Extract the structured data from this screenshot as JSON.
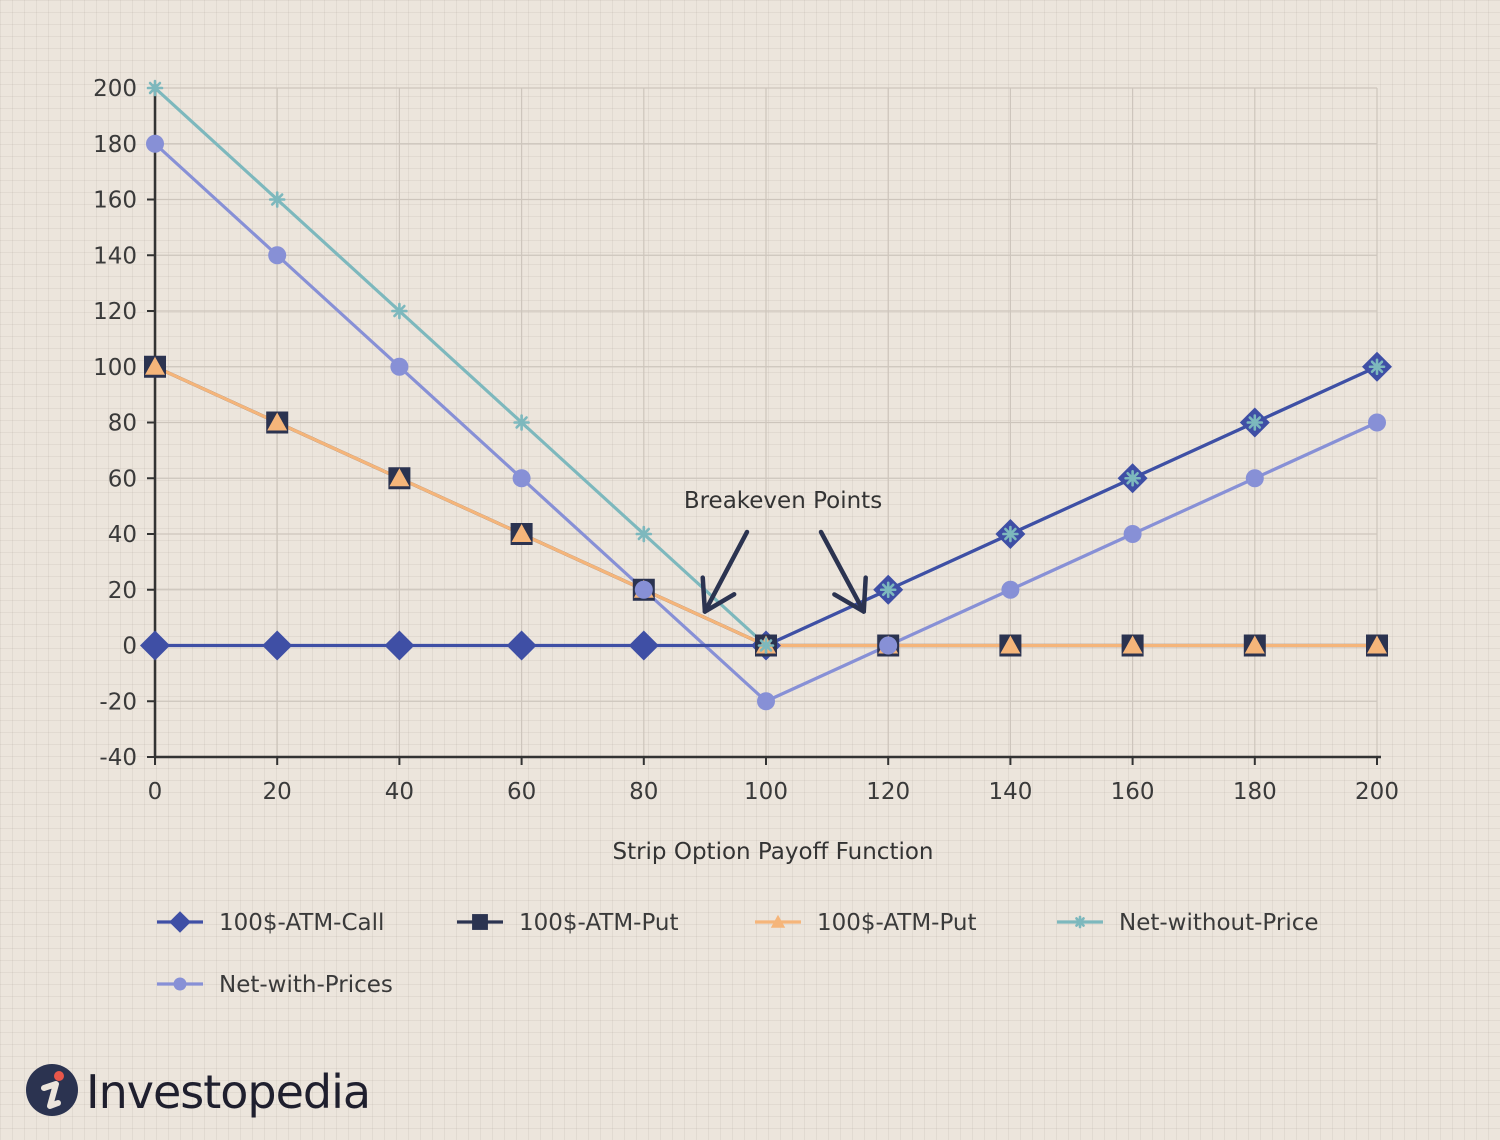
{
  "chart_data": {
    "type": "line",
    "title": "",
    "xlabel": "Strip Option Payoff Function",
    "ylabel": "",
    "x": [
      0,
      20,
      40,
      60,
      80,
      100,
      120,
      140,
      160,
      180,
      200
    ],
    "xlim": [
      0,
      200
    ],
    "ylim": [
      -40,
      200
    ],
    "xticks": [
      0,
      20,
      40,
      60,
      80,
      100,
      120,
      140,
      160,
      180,
      200
    ],
    "yticks": [
      -40,
      -20,
      0,
      20,
      40,
      60,
      80,
      100,
      120,
      140,
      160,
      180,
      200
    ],
    "grid": true,
    "legend_position": "bottom",
    "series": [
      {
        "name": "100$-ATM-Call",
        "marker": "diamond",
        "color": "#3f4fa5",
        "values": [
          0,
          0,
          0,
          0,
          0,
          0,
          20,
          40,
          60,
          80,
          100
        ]
      },
      {
        "name": "100$-ATM-Put",
        "marker": "square",
        "color": "#2b3350",
        "values": [
          100,
          80,
          60,
          40,
          20,
          0,
          0,
          0,
          0,
          0,
          0
        ]
      },
      {
        "name": "100$-ATM-Put",
        "marker": "triangle",
        "color": "#f5b57a",
        "values": [
          100,
          80,
          60,
          40,
          20,
          0,
          0,
          0,
          0,
          0,
          0
        ]
      },
      {
        "name": "Net-without-Price",
        "marker": "asterisk",
        "color": "#7db8bd",
        "values": [
          200,
          160,
          120,
          80,
          40,
          0,
          20,
          40,
          60,
          80,
          100
        ]
      },
      {
        "name": "Net-with-Prices",
        "marker": "circle",
        "color": "#8790d6",
        "values": [
          180,
          140,
          100,
          60,
          20,
          -20,
          0,
          20,
          40,
          60,
          80
        ]
      }
    ],
    "annotations": [
      {
        "text": "Breakeven Points",
        "arrows_to_x": [
          90,
          116
        ],
        "arrows_to_y": [
          5,
          5
        ]
      }
    ]
  },
  "branding": {
    "logo_text": "Investopedia",
    "logo_icon": "investopedia-i-icon"
  },
  "colors": {
    "axis": "#333333",
    "grid": "#cdc5bc",
    "background": "#ece5dc",
    "arrow": "#2b3350"
  }
}
